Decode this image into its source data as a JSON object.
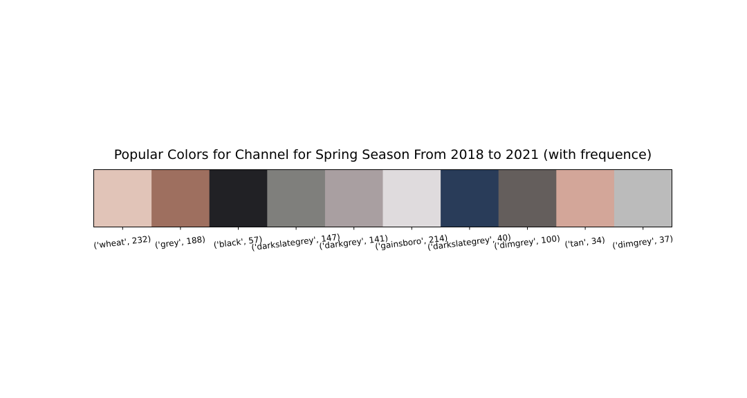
{
  "chart_data": {
    "type": "bar",
    "title": "Popular Colors for Channel for Spring Season From 2018 to 2021 (with frequence)",
    "xlabel": "",
    "ylabel": "",
    "grid": false,
    "categories": [
      "('wheat', 232)",
      "('grey', 188)",
      "('black', 57)",
      "('darkslategrey', 147)",
      "('darkgrey', 141)",
      "('gainsboro', 214)",
      "('darkslategrey', 40)",
      "('dimgrey', 100)",
      "('tan', 34)",
      "('dimgrey', 37)"
    ],
    "values": [
      232,
      188,
      57,
      147,
      141,
      214,
      40,
      100,
      34,
      37
    ],
    "colors": [
      "#e1c4b8",
      "#9e6f5f",
      "#212125",
      "#7f7f7c",
      "#a99fa1",
      "#dfdbdd",
      "#293c59",
      "#645e5c",
      "#d3a699",
      "#bbbbbb"
    ]
  }
}
